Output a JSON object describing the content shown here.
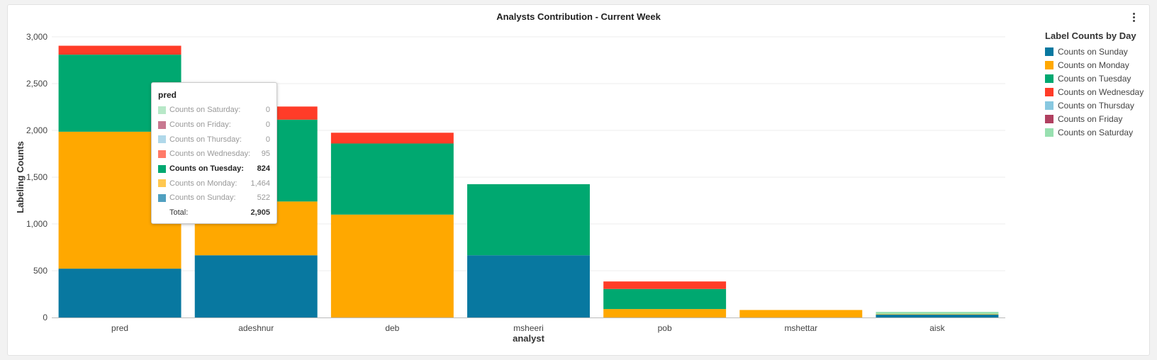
{
  "panel": {
    "title": "Analysts Contribution - Current Week",
    "menu_icon": "kebab-vertical-icon"
  },
  "chart_data": {
    "type": "bar",
    "stacked": true,
    "title": "Analysts Contribution - Current Week",
    "xlabel": "analyst",
    "ylabel": "Labeling Counts",
    "ylim": [
      0,
      3000
    ],
    "yticks": [
      0,
      500,
      1000,
      1500,
      2000,
      2500,
      3000
    ],
    "ytick_labels": [
      "0",
      "500",
      "1,000",
      "1,500",
      "2,000",
      "2,500",
      "3,000"
    ],
    "grid": true,
    "legend_position": "right",
    "legend_title": "Label Counts by Day",
    "categories": [
      "pred",
      "adeshnur",
      "deb",
      "msheeri",
      "pob",
      "mshettar",
      "aisk"
    ],
    "series": [
      {
        "name": "Counts on Sunday",
        "color": "#0878a0",
        "values": [
          522,
          665,
          0,
          665,
          0,
          0,
          30
        ]
      },
      {
        "name": "Counts on Monday",
        "color": "#ffa800",
        "values": [
          1464,
          575,
          1100,
          0,
          90,
          80,
          5
        ]
      },
      {
        "name": "Counts on Tuesday",
        "color": "#00a870",
        "values": [
          824,
          875,
          760,
          760,
          215,
          0,
          0
        ]
      },
      {
        "name": "Counts on Wednesday",
        "color": "#ff3c28",
        "values": [
          95,
          140,
          115,
          0,
          80,
          0,
          0
        ]
      },
      {
        "name": "Counts on Thursday",
        "color": "#88c8e0",
        "values": [
          0,
          0,
          0,
          0,
          0,
          0,
          0
        ]
      },
      {
        "name": "Counts on Friday",
        "color": "#b04060",
        "values": [
          0,
          0,
          0,
          0,
          0,
          0,
          0
        ]
      },
      {
        "name": "Counts on Saturday",
        "color": "#98e0b0",
        "values": [
          0,
          0,
          0,
          0,
          0,
          0,
          25
        ]
      }
    ]
  },
  "tooltip": {
    "title": "pred",
    "rows": [
      {
        "label": "Counts on Saturday:",
        "value": "0",
        "color": "#b8e8c8"
      },
      {
        "label": "Counts on Friday:",
        "value": "0",
        "color": "#c87890"
      },
      {
        "label": "Counts on Thursday:",
        "value": "0",
        "color": "#b0d8ea"
      },
      {
        "label": "Counts on Wednesday:",
        "value": "95",
        "color": "#ff7a68"
      },
      {
        "label": "Counts on Tuesday:",
        "value": "824",
        "color": "#00a870"
      },
      {
        "label": "Counts on Monday:",
        "value": "1,464",
        "color": "#ffc850"
      },
      {
        "label": "Counts on Sunday:",
        "value": "522",
        "color": "#50a0c0"
      }
    ],
    "highlighted_index": 4,
    "total_label": "Total:",
    "total_value": "2,905"
  }
}
